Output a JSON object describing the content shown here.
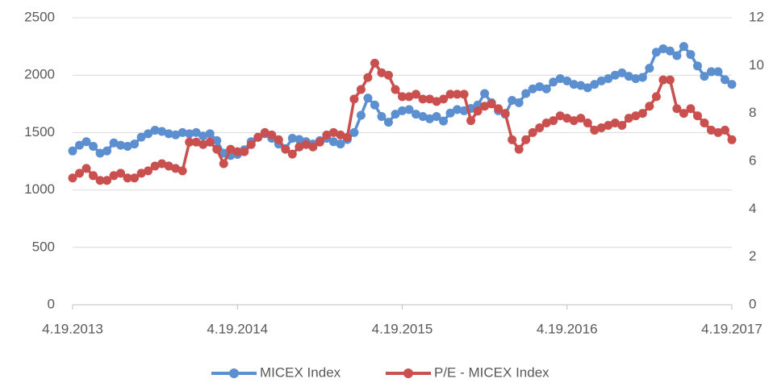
{
  "chart_data": {
    "type": "line",
    "categories": [
      "4.19.2013",
      null,
      null,
      null,
      null,
      null,
      null,
      null,
      null,
      null,
      null,
      null,
      null,
      null,
      null,
      null,
      null,
      null,
      null,
      null,
      null,
      null,
      null,
      null,
      "4.19.2014",
      null,
      null,
      null,
      null,
      null,
      null,
      null,
      null,
      null,
      null,
      null,
      null,
      null,
      null,
      null,
      null,
      null,
      null,
      null,
      null,
      null,
      null,
      null,
      "4.19.2015",
      null,
      null,
      null,
      null,
      null,
      null,
      null,
      null,
      null,
      null,
      null,
      null,
      null,
      null,
      null,
      null,
      null,
      null,
      null,
      null,
      null,
      null,
      null,
      "4.19.2016",
      null,
      null,
      null,
      null,
      null,
      null,
      null,
      null,
      null,
      null,
      null,
      null,
      null,
      null,
      null,
      null,
      null,
      null,
      null,
      null,
      null,
      null,
      null,
      "4.19.2017"
    ],
    "series": [
      {
        "name": "MICEX Index",
        "color": "#5b8fd0",
        "axis": "y",
        "values": [
          1340,
          1390,
          1420,
          1380,
          1320,
          1340,
          1410,
          1390,
          1380,
          1400,
          1460,
          1490,
          1520,
          1510,
          1490,
          1480,
          1500,
          1490,
          1500,
          1470,
          1490,
          1430,
          1320,
          1300,
          1310,
          1350,
          1420,
          1460,
          1490,
          1450,
          1400,
          1360,
          1450,
          1440,
          1420,
          1400,
          1430,
          1450,
          1420,
          1400,
          1440,
          1500,
          1650,
          1800,
          1740,
          1640,
          1590,
          1660,
          1690,
          1700,
          1660,
          1640,
          1620,
          1640,
          1600,
          1670,
          1700,
          1690,
          1710,
          1740,
          1840,
          1760,
          1690,
          1660,
          1780,
          1760,
          1840,
          1880,
          1900,
          1880,
          1940,
          1970,
          1950,
          1920,
          1910,
          1890,
          1920,
          1950,
          1970,
          2000,
          2020,
          1990,
          1970,
          1980,
          2060,
          2200,
          2230,
          2210,
          2170,
          2250,
          2180,
          2080,
          1990,
          2030,
          2030,
          1960,
          1920
        ]
      },
      {
        "name": "P/E - MICEX Index",
        "color": "#c9504f",
        "axis": "y2",
        "values": [
          5.3,
          5.5,
          5.7,
          5.4,
          5.2,
          5.2,
          5.4,
          5.5,
          5.3,
          5.3,
          5.5,
          5.6,
          5.8,
          5.9,
          5.8,
          5.7,
          5.6,
          6.8,
          6.8,
          6.7,
          6.8,
          6.5,
          5.9,
          6.5,
          6.4,
          6.4,
          6.7,
          7.0,
          7.2,
          7.1,
          6.9,
          6.5,
          6.3,
          6.6,
          6.7,
          6.6,
          6.8,
          7.1,
          7.2,
          7.1,
          7.0,
          8.6,
          9.0,
          9.5,
          10.1,
          9.7,
          9.6,
          9.0,
          8.7,
          8.7,
          8.8,
          8.6,
          8.6,
          8.5,
          8.6,
          8.8,
          8.8,
          8.8,
          7.7,
          8.1,
          8.3,
          8.4,
          8.2,
          8.0,
          6.9,
          6.5,
          6.9,
          7.2,
          7.4,
          7.6,
          7.7,
          7.9,
          7.8,
          7.7,
          7.8,
          7.6,
          7.3,
          7.4,
          7.5,
          7.6,
          7.5,
          7.8,
          7.9,
          8.0,
          8.3,
          8.7,
          9.4,
          9.4,
          8.2,
          8.0,
          8.2,
          7.9,
          7.6,
          7.3,
          7.2,
          7.3,
          6.9
        ]
      }
    ],
    "ylim": [
      0,
      2500
    ],
    "yticks": [
      0,
      500,
      1000,
      1500,
      2000,
      2500
    ],
    "y2lim": [
      0,
      12
    ],
    "y2ticks": [
      0,
      2,
      4,
      6,
      8,
      10,
      12
    ],
    "grid": true,
    "legend": "bottom"
  }
}
